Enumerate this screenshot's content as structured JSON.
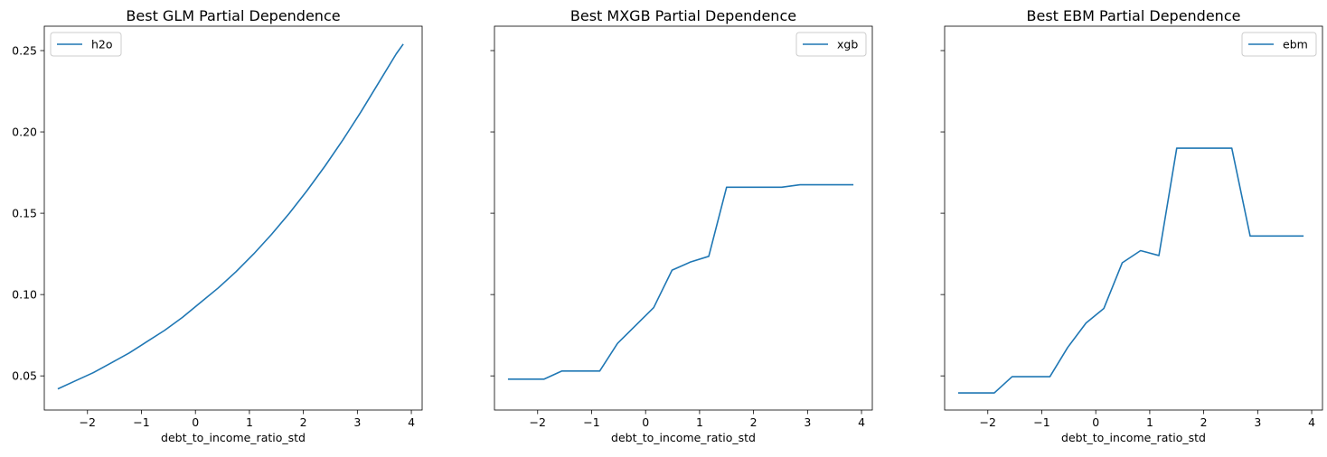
{
  "line_color": "#1f77b4",
  "chart_data": [
    {
      "type": "line",
      "title": "Best GLM Partial Dependence",
      "xlabel": "debt_to_income_ratio_std",
      "ylabel": "",
      "xlim": [
        -2.8,
        4.2
      ],
      "ylim": [
        0.029,
        0.265
      ],
      "xticks": [
        -2,
        -1,
        0,
        1,
        2,
        3,
        4
      ],
      "xtick_labels": [
        "−2",
        "−1",
        "0",
        "1",
        "2",
        "3",
        "4"
      ],
      "yticks": [
        0.05,
        0.1,
        0.15,
        0.2,
        0.25
      ],
      "ytick_labels": [
        "0.05",
        "0.10",
        "0.15",
        "0.20",
        "0.25"
      ],
      "legend_position": "top-left",
      "grid": false,
      "series": [
        {
          "name": "h2o",
          "x": [
            -2.55,
            -2.22,
            -1.89,
            -1.56,
            -1.23,
            -0.9,
            -0.57,
            -0.24,
            0.09,
            0.42,
            0.75,
            1.08,
            1.41,
            1.74,
            2.07,
            2.4,
            2.73,
            3.06,
            3.39,
            3.72,
            3.85
          ],
          "y": [
            0.042,
            0.047,
            0.052,
            0.058,
            0.064,
            0.071,
            0.078,
            0.086,
            0.095,
            0.104,
            0.114,
            0.125,
            0.137,
            0.15,
            0.164,
            0.179,
            0.195,
            0.212,
            0.23,
            0.248,
            0.254
          ]
        }
      ]
    },
    {
      "type": "line",
      "title": "Best MXGB Partial Dependence",
      "xlabel": "debt_to_income_ratio_std",
      "ylabel": "",
      "xlim": [
        -2.8,
        4.2
      ],
      "ylim": [
        0.029,
        0.265
      ],
      "xticks": [
        -2,
        -1,
        0,
        1,
        2,
        3,
        4
      ],
      "xtick_labels": [
        "−2",
        "−1",
        "0",
        "1",
        "2",
        "3",
        "4"
      ],
      "yticks": [
        0.05,
        0.1,
        0.15,
        0.2,
        0.25
      ],
      "ytick_labels": [
        "",
        "",
        "",
        "",
        ""
      ],
      "legend_position": "top-right",
      "grid": false,
      "series": [
        {
          "name": "xgb",
          "x": [
            -2.55,
            -1.88,
            -1.55,
            -0.85,
            -0.52,
            0.15,
            0.49,
            0.83,
            1.17,
            1.5,
            2.52,
            2.86,
            3.85
          ],
          "y": [
            0.048,
            0.048,
            0.053,
            0.053,
            0.07,
            0.092,
            0.115,
            0.12,
            0.1235,
            0.166,
            0.166,
            0.1675,
            0.1675
          ]
        }
      ]
    },
    {
      "type": "line",
      "title": "Best EBM Partial Dependence",
      "xlabel": "debt_to_income_ratio_std",
      "ylabel": "",
      "xlim": [
        -2.8,
        4.2
      ],
      "ylim": [
        0.029,
        0.265
      ],
      "xticks": [
        -2,
        -1,
        0,
        1,
        2,
        3,
        4
      ],
      "xtick_labels": [
        "−2",
        "−1",
        "0",
        "1",
        "2",
        "3",
        "4"
      ],
      "yticks": [
        0.05,
        0.1,
        0.15,
        0.2,
        0.25
      ],
      "ytick_labels": [
        "",
        "",
        "",
        "",
        ""
      ],
      "legend_position": "top-right",
      "grid": false,
      "series": [
        {
          "name": "ebm",
          "x": [
            -2.55,
            -1.88,
            -1.55,
            -0.85,
            -0.52,
            -0.18,
            0.15,
            0.49,
            0.83,
            1.17,
            1.5,
            2.52,
            2.86,
            3.85
          ],
          "y": [
            0.0395,
            0.0395,
            0.0495,
            0.0495,
            0.0675,
            0.0825,
            0.0915,
            0.1195,
            0.127,
            0.124,
            0.19,
            0.19,
            0.136,
            0.136
          ]
        }
      ]
    }
  ]
}
